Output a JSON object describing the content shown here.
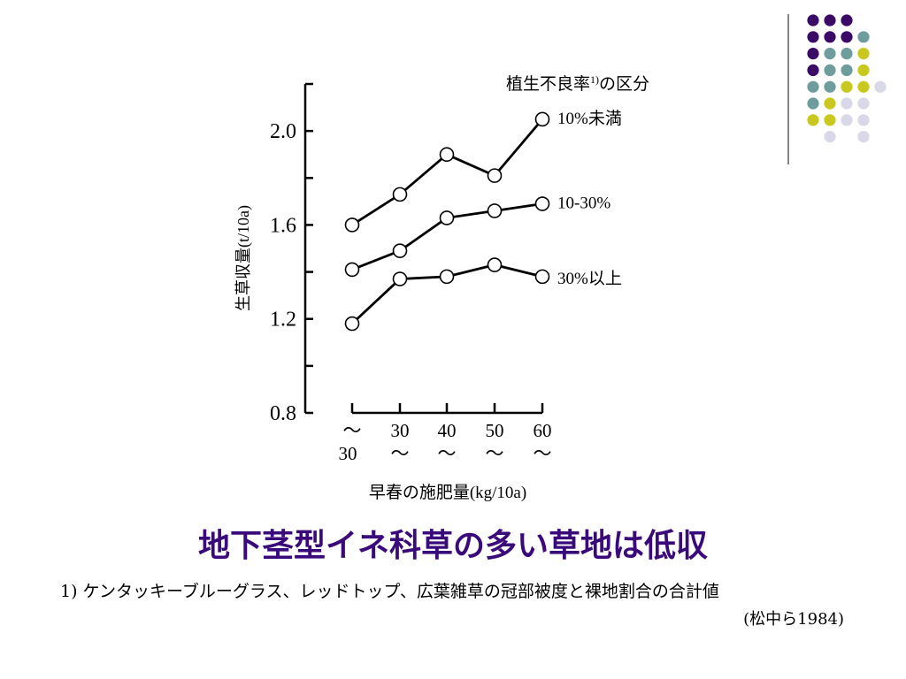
{
  "slide": {
    "main_title": "地下茎型イネ科草の多い草地は低収",
    "footnote": "1) ケンタッキーブルーグラス、レッドトップ、広葉雑草の冠部被度と裸地割合の合計値",
    "source": "(松中ら1984)"
  },
  "decor": {
    "dot_colors": [
      "#3b0a66",
      "#6f9c9c",
      "#c8c81e",
      "#d8d8e8"
    ],
    "rule_color": "#333333"
  },
  "chart_data": {
    "type": "line",
    "title": "",
    "xlabel": "早春の施肥量(kg/10a)",
    "ylabel": "生草収量(t/10a)",
    "ylim": [
      0.8,
      2.2
    ],
    "y_ticks": [
      "2.0",
      "1.6",
      "1.2",
      "0.8"
    ],
    "legend_title": "植生不良率",
    "legend_title_sup": "1)",
    "legend_title_tail": "の区分",
    "categories": [
      {
        "top": "〜",
        "bottom": "30"
      },
      {
        "top": "30",
        "bottom": "〜"
      },
      {
        "top": "40",
        "bottom": "〜"
      },
      {
        "top": "50",
        "bottom": "〜"
      },
      {
        "top": "60",
        "bottom": "〜"
      }
    ],
    "series": [
      {
        "name": "10%未満",
        "values": [
          1.6,
          1.73,
          1.9,
          1.81,
          2.05
        ]
      },
      {
        "name": "10-30%",
        "values": [
          1.41,
          1.49,
          1.63,
          1.66,
          1.69
        ]
      },
      {
        "name": "30%以上",
        "values": [
          1.18,
          1.37,
          1.38,
          1.43,
          1.38
        ]
      }
    ],
    "grid": false,
    "legend_placement": "right"
  }
}
